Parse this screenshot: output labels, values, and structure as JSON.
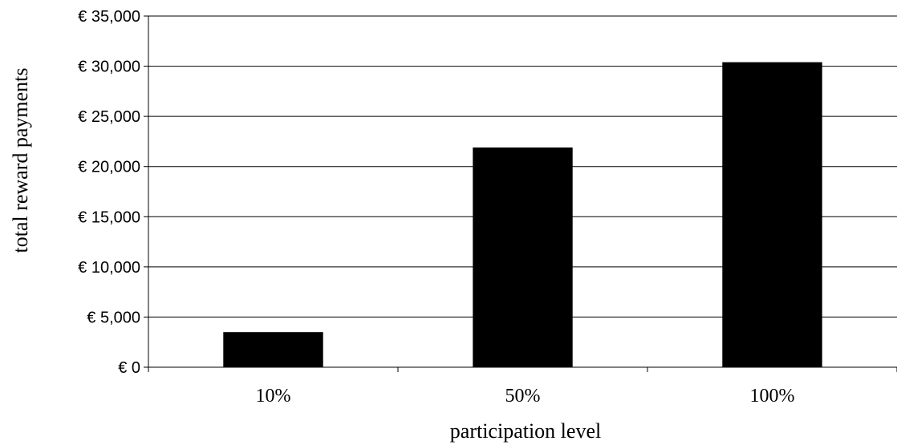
{
  "chart_data": {
    "type": "bar",
    "categories": [
      "10%",
      "50%",
      "100%"
    ],
    "values": [
      3500,
      21900,
      30400
    ],
    "xlabel": "participation level",
    "ylabel": "total reward payments",
    "ylim": [
      0,
      35000
    ],
    "yticks": [
      0,
      5000,
      10000,
      15000,
      20000,
      25000,
      30000,
      35000
    ],
    "ytick_labels": [
      "€ 0",
      "€ 5,000",
      "€ 10,000",
      "€ 15,000",
      "€ 20,000",
      "€ 25,000",
      "€ 30,000",
      "€ 35,000"
    ],
    "grid": true,
    "bar_color": "#000000",
    "legend": "none"
  }
}
